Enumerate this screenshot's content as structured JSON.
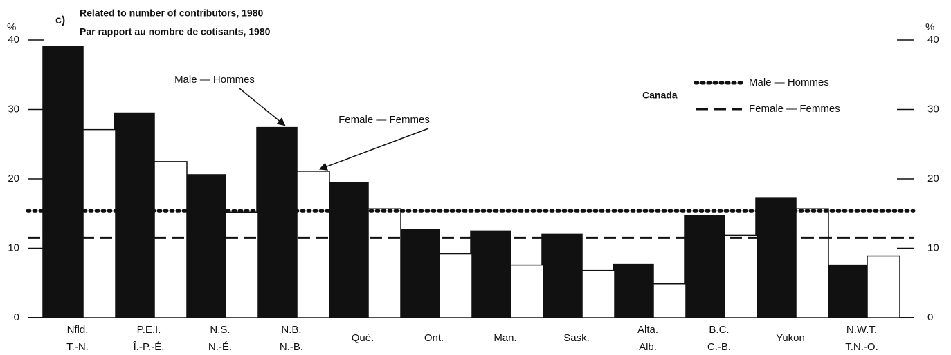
{
  "chart_data": {
    "type": "bar",
    "panel_label": "c)",
    "title": "Related to number of contributors, 1980",
    "subtitle": "Par rapport au nombre de cotisants, 1980",
    "y_unit": "%",
    "categories": [
      "Nfld.",
      "P.E.I.",
      "N.S.",
      "N.B.",
      "Qué.",
      "Ont.",
      "Man.",
      "Sask.",
      "Alta.",
      "B.C.",
      "Yukon",
      "N.W.T."
    ],
    "categories_fr": [
      "T.-N.",
      "Î.-P.-É.",
      "N.-É.",
      "N.-B.",
      null,
      null,
      null,
      null,
      "Alb.",
      "C.-B.",
      null,
      "T.N.-O."
    ],
    "series": [
      {
        "name": "Male — Hommes",
        "color": "#111111",
        "values": [
          39.1,
          29.5,
          20.6,
          27.4,
          19.5,
          12.7,
          12.5,
          12.0,
          7.7,
          14.7,
          17.3,
          7.6
        ]
      },
      {
        "name": "Female — Femmes",
        "color": "#ffffff",
        "values": [
          27.1,
          22.5,
          15.2,
          21.1,
          15.7,
          9.2,
          7.6,
          6.8,
          4.9,
          11.9,
          15.7,
          8.9
        ]
      }
    ],
    "reference_label": "Canada",
    "reference_lines": [
      {
        "name": "Male — Hommes",
        "style": "dotted",
        "value": 15.4
      },
      {
        "name": "Female — Femmes",
        "style": "dashed",
        "value": 11.5
      }
    ],
    "annotations": [
      {
        "text": "Male — Hommes",
        "category": 3,
        "series": 0
      },
      {
        "text": "Female — Femmes",
        "category": 3,
        "series": 1
      }
    ],
    "ylim": [
      0,
      40
    ],
    "yticks": [
      0,
      10,
      20,
      30,
      40
    ]
  }
}
